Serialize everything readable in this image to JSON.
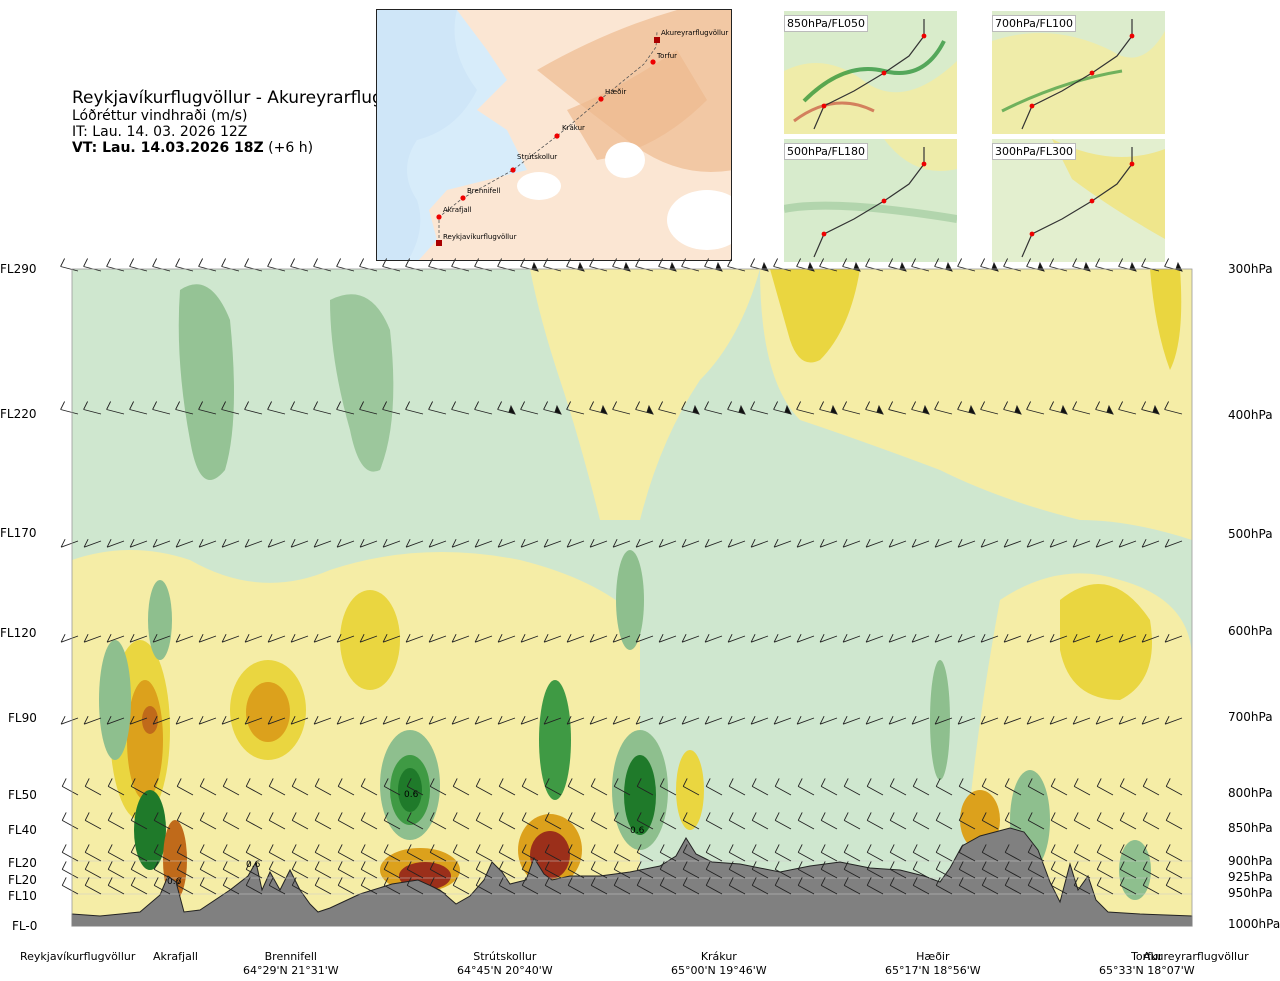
{
  "header": {
    "route": "Reykjavíkurflugvöllur - Akureyrarflugvöllur",
    "variable": "Lóðréttur vindhraði (m/s)",
    "issue_time": "IT: Lau. 14. 03. 2026 12Z",
    "valid_time_bold": "VT: Lau. 14.03.2026 18Z",
    "valid_time_offset": "(+6 h)"
  },
  "map": {
    "waypoints": [
      "Reykjavíkurflugvöllur",
      "Akrafjall",
      "Brennifell",
      "Strútskollur",
      "Krákur",
      "Hæðir",
      "Torfur",
      "Akureyrarflugvöllur"
    ]
  },
  "mini_maps": [
    "850hPa/FL050",
    "700hPa/FL100",
    "500hPa/FL180",
    "300hPa/FL300"
  ],
  "chart_data": {
    "type": "heatmap",
    "title": "Reykjavíkurflugvöllur - Akureyrarflugvöllur",
    "xlabel": "",
    "ylabel": "",
    "left_axis_labels": [
      "FL290",
      "FL220",
      "FL170",
      "FL120",
      "FL90",
      "FL50",
      "FL40",
      "FL20",
      "FL20",
      "FL10",
      "FL-0"
    ],
    "right_axis_labels": [
      "300hPa",
      "400hPa",
      "500hPa",
      "600hPa",
      "700hPa",
      "800hPa",
      "850hPa",
      "900hPa",
      "925hPa",
      "950hPa",
      "1000hPa"
    ],
    "pressure_levels_hpa": [
      300,
      400,
      500,
      600,
      700,
      800,
      850,
      900,
      925,
      950,
      1000
    ],
    "locations": [
      {
        "name": "Reykjavíkurflugvöllur",
        "coord": ""
      },
      {
        "name": "Akrafjall",
        "coord": ""
      },
      {
        "name": "Brennifell",
        "coord": "64°29'N 21°31'W"
      },
      {
        "name": "Strútskollur",
        "coord": "64°45'N 20°40'W"
      },
      {
        "name": "Krákur",
        "coord": "65°00'N 19°46'W"
      },
      {
        "name": "Hæðir",
        "coord": "65°17'N 18°56'W"
      },
      {
        "name": "Torfur",
        "coord": "65°33'N 18°07'W"
      },
      {
        "name": "Akureyrarflugvöllur",
        "coord": ""
      }
    ],
    "contour_labels": [
      "0.6",
      "0.6",
      "0.6",
      "0.6"
    ],
    "colors": {
      "strong_down": "#5a9a5a",
      "down": "#8ebf8e",
      "weak_down": "#cfe7cf",
      "neutral": "#f3fbe8",
      "weak_up": "#f5eda6",
      "up": "#ead640",
      "strong_up": "#dca11c",
      "very_strong_up": "#c06a1a",
      "extreme_up": "#9b2f1a",
      "terrain": "#808080"
    }
  }
}
